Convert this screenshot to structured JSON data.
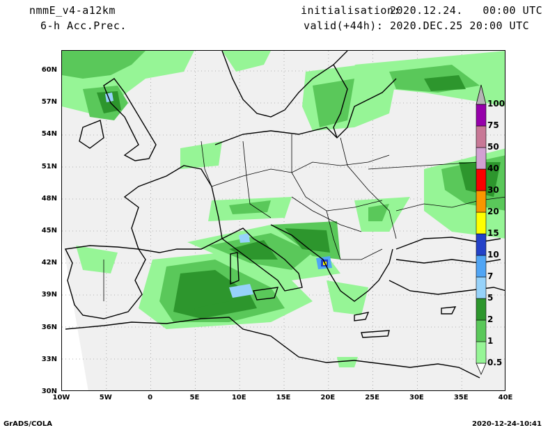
{
  "header": {
    "model": "nmmE_v4-a12km",
    "field": "6-h Acc.Prec.",
    "init_label": "initialisation:",
    "init_value": "2020.12.24.   00:00 UTC",
    "valid_label": "valid(+44h):",
    "valid_value": "2020.DEC.25 20:00 UTC"
  },
  "map": {
    "lat_ticks": [
      "60N",
      "57N",
      "54N",
      "51N",
      "48N",
      "45N",
      "42N",
      "39N",
      "36N",
      "33N",
      "30N"
    ],
    "lon_ticks": [
      "10W",
      "5W",
      "0",
      "5E",
      "10E",
      "15E",
      "20E",
      "25E",
      "30E",
      "35E",
      "40E"
    ]
  },
  "colorbar": {
    "levels": [
      "0.5",
      "1",
      "2",
      "5",
      "7",
      "10",
      "15",
      "20",
      "30",
      "40",
      "50",
      "75",
      "100"
    ],
    "colors": [
      "#96f596",
      "#5ac85a",
      "#2d962d",
      "#96d2fa",
      "#50a5f5",
      "#2341c8",
      "#ffff00",
      "#fa9600",
      "#fa0000",
      "#d2a0d2",
      "#c87896",
      "#9600aa",
      "#b4b4b4"
    ]
  },
  "footer": {
    "left": "GrADS/COLA",
    "right": "2020-12-24-10:41"
  },
  "legend_colors": {
    "land_bg": "#f0f0f0",
    "domain_outside": "#ffffff",
    "coast": "#000000"
  }
}
